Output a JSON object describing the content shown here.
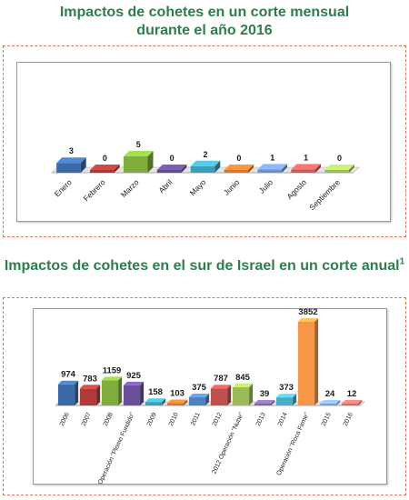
{
  "charts_titles": {
    "monthly_line1": "Impactos de cohetes en un corte mensual",
    "monthly_line2": "durante el año 2016",
    "annual_main": "Impactos de cohetes en el sur de Israel en un corte anual",
    "annual_sup": "1"
  },
  "chart_data": [
    {
      "type": "bar",
      "title": "Impactos de cohetes en un corte mensual durante el año 2016",
      "categories": [
        "Enero",
        "Febrero",
        "Marzo",
        "Abril",
        "Mayo",
        "Junio",
        "Julio",
        "Agosto",
        "Septiembre"
      ],
      "values": [
        3,
        0,
        5,
        0,
        2,
        0,
        1,
        1,
        0
      ],
      "value_labels": [
        "3",
        "0",
        "5",
        "0",
        "2",
        "0",
        "1",
        "1",
        "0"
      ],
      "colors": [
        "#3b6aa8",
        "#a33838",
        "#7fae3e",
        "#5f4b8b",
        "#3aa0b8",
        "#d9732e",
        "#6b8fcf",
        "#c85a5a",
        "#9bbb59"
      ],
      "xlabel": "",
      "ylabel": "",
      "grid": false,
      "legend": "none",
      "style": "3d"
    },
    {
      "type": "bar",
      "title": "Impactos de cohetes en el sur de Israel en un corte anual",
      "categories": [
        "2006",
        "2007",
        "2008",
        "Operación \"Plomo Fundido\"",
        "2009",
        "2010",
        "2011",
        "2012",
        "2012 Operación \"Nube\"",
        "2013",
        "2014",
        "Operación \"Roca Firme\"",
        "2015",
        "2016"
      ],
      "values": [
        974,
        783,
        1159,
        925,
        158,
        103,
        375,
        787,
        845,
        39,
        373,
        3852,
        24,
        12
      ],
      "value_labels": [
        "974",
        "783",
        "1159",
        "925",
        "158",
        "103",
        "375",
        "787",
        "845",
        "39",
        "373",
        "3852",
        "24",
        "12"
      ],
      "colors": [
        "#3b6aa8",
        "#b03a3a",
        "#7fae3e",
        "#6a4f9b",
        "#3aa0b8",
        "#d9732e",
        "#4f81bd",
        "#c0504d",
        "#9bbb59",
        "#8064a2",
        "#4bacc6",
        "#f79646",
        "#7aa0d8",
        "#d46a6a"
      ],
      "xlabel": "",
      "ylabel": "",
      "grid": false,
      "legend": "none",
      "style": "3d"
    }
  ]
}
